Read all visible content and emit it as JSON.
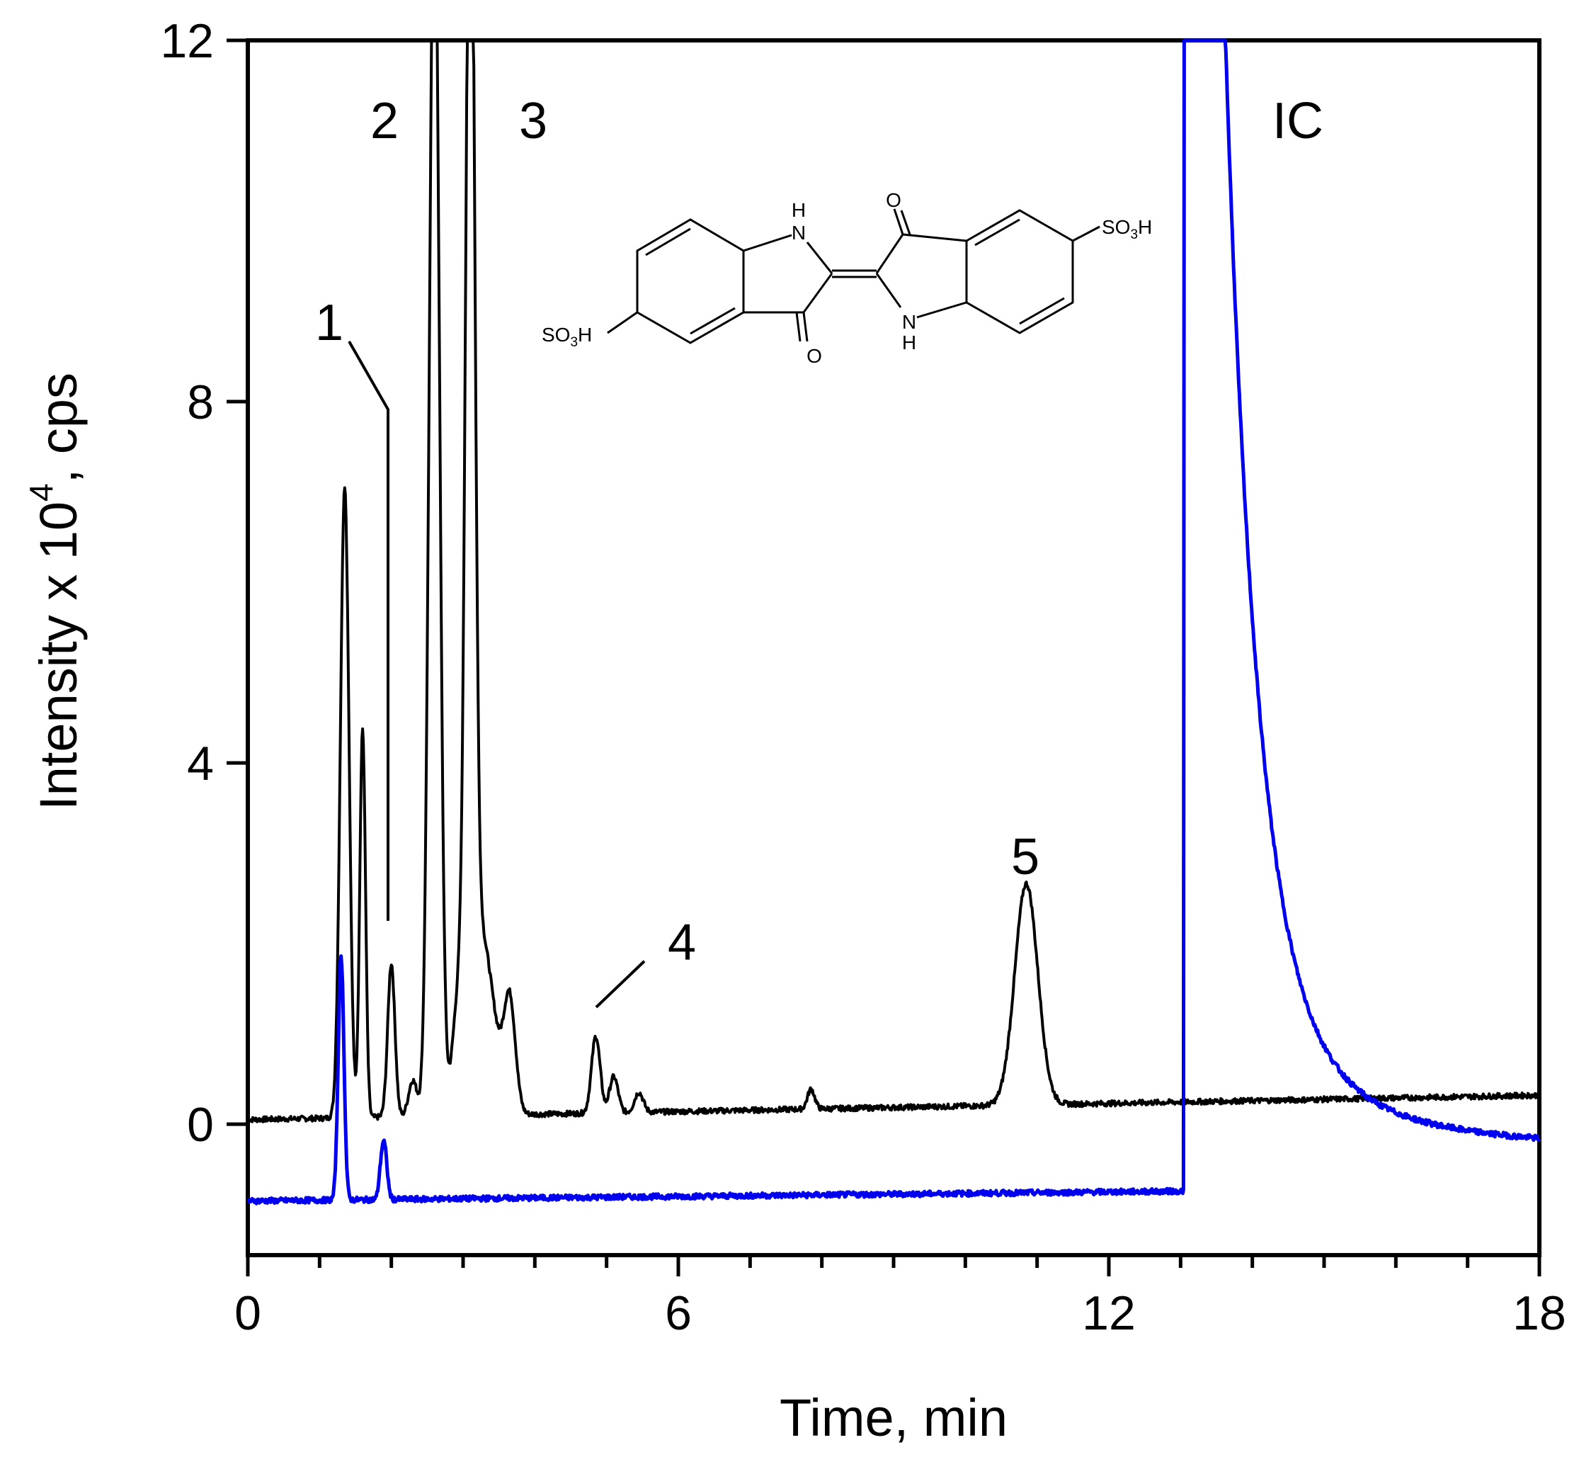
{
  "chart_data": {
    "type": "line",
    "xlabel": "Time, min",
    "ylabel_main": "Intensity x 10",
    "ylabel_sup": "4",
    "ylabel_tail": ", cps",
    "xlim": [
      0,
      18
    ],
    "ylim": [
      -1.45,
      12
    ],
    "x_ticks": [
      0,
      6,
      12,
      18
    ],
    "x_tick_labels": [
      "0",
      "6",
      "12",
      "18"
    ],
    "x_minor_step": 1,
    "y_ticks": [
      0,
      4,
      8,
      12
    ],
    "y_tick_labels": [
      "0",
      "4",
      "8",
      "12"
    ],
    "grid": false,
    "series": [
      {
        "color": "#000000",
        "peaks": [
          {
            "x": 1.35,
            "h": 7.0,
            "w": 0.06
          },
          {
            "x": 1.6,
            "h": 4.3,
            "w": 0.04
          },
          {
            "x": 2.0,
            "h": 1.7,
            "w": 0.05
          },
          {
            "x": 2.3,
            "h": 0.4,
            "w": 0.06
          },
          {
            "x": 2.6,
            "h": 14.0,
            "w": 0.07
          },
          {
            "x": 2.93,
            "h": 1.0,
            "w": 0.08
          },
          {
            "x": 3.1,
            "h": 14.0,
            "w": 0.06
          },
          {
            "x": 3.25,
            "h": 2.0,
            "w": 0.18
          },
          {
            "x": 3.65,
            "h": 1.2,
            "w": 0.08
          },
          {
            "x": 4.85,
            "h": 0.85,
            "w": 0.06
          },
          {
            "x": 5.1,
            "h": 0.4,
            "w": 0.06
          },
          {
            "x": 5.45,
            "h": 0.22,
            "w": 0.06
          },
          {
            "x": 7.85,
            "h": 0.22,
            "w": 0.05
          },
          {
            "x": 10.85,
            "h": 2.45,
            "w": 0.16
          }
        ],
        "baseline_start": 0.05,
        "baseline_end": 0.32,
        "x_start": 0,
        "x_end": 18
      },
      {
        "color": "#0000ee",
        "peaks": [
          {
            "x": 1.3,
            "h": 2.7,
            "w": 0.04
          },
          {
            "x": 1.85,
            "h": 0.15,
            "w": 0.03
          },
          {
            "x": 1.9,
            "h": 0.6,
            "w": 0.04
          }
        ],
        "baseline_start": -0.85,
        "baseline_end": -0.7,
        "x_start": 0,
        "x_end": 18,
        "ic_peak": {
          "x_rise": 13.05,
          "x_top": 13.45,
          "decay_to": -0.25
        }
      }
    ],
    "annotations": [
      {
        "text": "1"
      },
      {
        "text": "2"
      },
      {
        "text": "3"
      },
      {
        "text": "4"
      },
      {
        "text": "5"
      },
      {
        "text": "IC"
      }
    ]
  },
  "structure": {
    "labels": {
      "nh_top": "H",
      "n_top": "N",
      "o_top": "O",
      "o_bottom": "O",
      "n_bottom": "N",
      "nh_bottom": "H",
      "so3h_left_a": "SO",
      "so3h_left_sub": "3",
      "so3h_left_b": "H",
      "so3h_right_a": "SO",
      "so3h_right_sub": "3",
      "so3h_right_b": "H"
    }
  }
}
